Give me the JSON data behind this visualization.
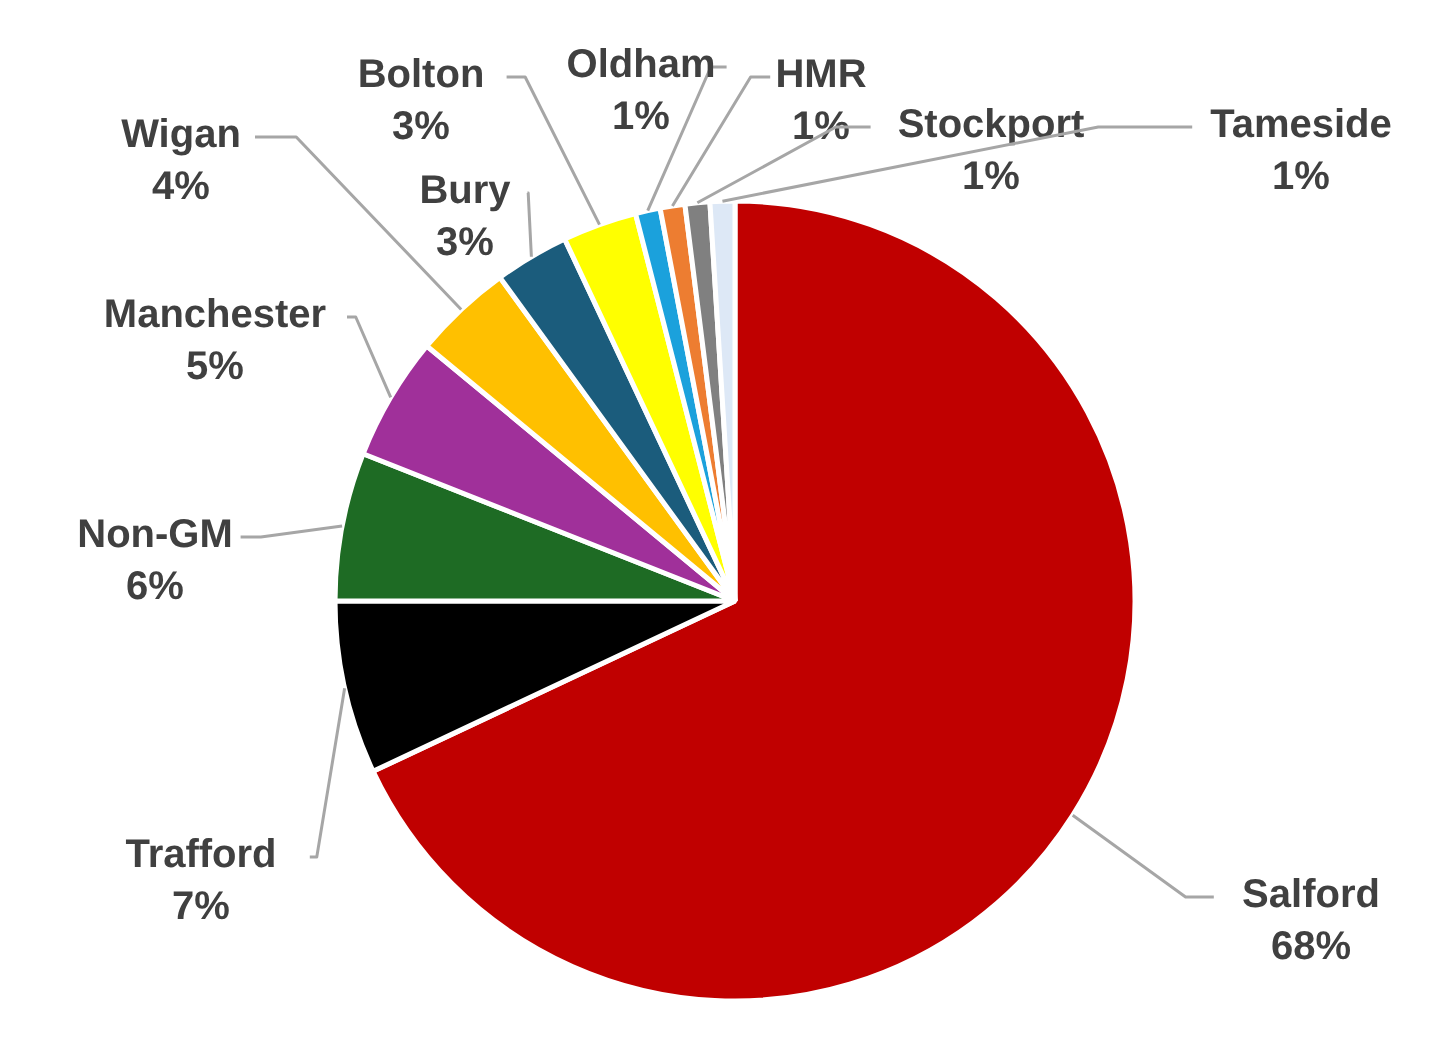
{
  "chart_data": {
    "type": "pie",
    "categories": [
      "Salford",
      "Trafford",
      "Non-GM",
      "Manchester",
      "Wigan",
      "Bury",
      "Bolton",
      "Oldham",
      "HMR",
      "Stockport",
      "Tameside"
    ],
    "values": [
      68,
      7,
      6,
      5,
      4,
      3,
      3,
      1,
      1,
      1,
      1
    ],
    "colors": [
      "#c00000",
      "#000000",
      "#1e6b24",
      "#a0309a",
      "#ffc000",
      "#1b5c7c",
      "#ffff00",
      "#1ba1dc",
      "#ed7d31",
      "#808080",
      "#dde8f6"
    ],
    "value_labels": [
      "68%",
      "7%",
      "6%",
      "5%",
      "4%",
      "3%",
      "3%",
      "1%",
      "1%",
      "1%",
      "1%"
    ]
  }
}
